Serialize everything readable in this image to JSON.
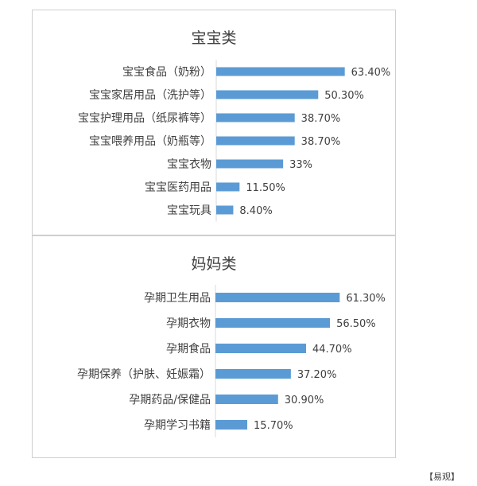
{
  "source_label": "【易观】",
  "colors": {
    "bar": "#5b9bd5",
    "label": "#404040",
    "axis": "#d9d9d9"
  },
  "chart_data": [
    {
      "type": "bar",
      "orientation": "horizontal",
      "title": "宝宝类",
      "categories": [
        "宝宝食品（奶粉）",
        "宝宝家居用品（洗护等）",
        "宝宝护理用品（纸尿裤等）",
        "宝宝喂养用品（奶瓶等）",
        "宝宝衣物",
        "宝宝医药用品",
        "宝宝玩具"
      ],
      "values": [
        63.4,
        50.3,
        38.7,
        38.7,
        33,
        11.5,
        8.4
      ],
      "value_labels": [
        "63.40%",
        "50.30%",
        "38.70%",
        "38.70%",
        "33%",
        "11.50%",
        "8.40%"
      ],
      "unit": "%",
      "xlim": [
        0,
        70
      ],
      "grid": false,
      "legend": "none"
    },
    {
      "type": "bar",
      "orientation": "horizontal",
      "title": "妈妈类",
      "categories": [
        "孕期卫生用品",
        "孕期衣物",
        "孕期食品",
        "孕期保养（护肤、妊娠霜）",
        "孕期药品/保健品",
        "孕期学习书籍"
      ],
      "values": [
        61.3,
        56.5,
        44.7,
        37.2,
        30.9,
        15.7
      ],
      "value_labels": [
        "61.30%",
        "56.50%",
        "44.70%",
        "37.20%",
        "30.90%",
        "15.70%"
      ],
      "unit": "%",
      "xlim": [
        0,
        70
      ],
      "grid": false,
      "legend": "none"
    }
  ]
}
